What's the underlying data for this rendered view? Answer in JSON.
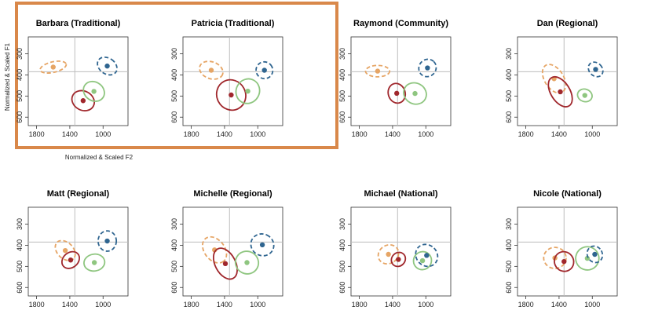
{
  "chart_data": {
    "type": "scatter",
    "xlabel": "Normalized & Scaled F2",
    "ylabel": "Normalized & Scaled F1",
    "x_reversed": true,
    "y_reversed": true,
    "xlim": [
      1900,
      700
    ],
    "ylim": [
      640,
      220
    ],
    "x_ticks": [
      1800,
      1400,
      1000
    ],
    "y_ticks": [
      300,
      400,
      500,
      600
    ],
    "reference_lines": {
      "x": 1340,
      "y": 385
    },
    "highlighted_panels": [
      "Barbara (Traditional)",
      "Patricia (Traditional)"
    ],
    "highlight_color": "#d9884a",
    "series_colors": {
      "orange": "#e6a565",
      "red": "#a0272c",
      "green": "#8fc680",
      "blue": "#2f6590"
    },
    "panels": [
      {
        "title": "Barbara (Traditional)",
        "groups": [
          {
            "color": "orange",
            "dashed": true,
            "x": 1600,
            "y": 363,
            "rx": 160,
            "ry": 25,
            "angle": -13
          },
          {
            "color": "red",
            "dashed": false,
            "x": 1240,
            "y": 522,
            "rx": 115,
            "ry": 55,
            "angle": -62
          },
          {
            "color": "green",
            "dashed": false,
            "x": 1110,
            "y": 478,
            "rx": 112,
            "ry": 52,
            "angle": -55
          },
          {
            "color": "blue",
            "dashed": true,
            "x": 950,
            "y": 358,
            "rx": 95,
            "ry": 50,
            "angle": -55
          }
        ]
      },
      {
        "title": "Patricia (Traditional)",
        "groups": [
          {
            "color": "orange",
            "dashed": true,
            "x": 1560,
            "y": 378,
            "rx": 145,
            "ry": 40,
            "angle": 20
          },
          {
            "color": "red",
            "dashed": false,
            "x": 1320,
            "y": 495,
            "rx": 185,
            "ry": 68,
            "angle": 62
          },
          {
            "color": "green",
            "dashed": false,
            "x": 1120,
            "y": 477,
            "rx": 150,
            "ry": 55,
            "angle": -62
          },
          {
            "color": "blue",
            "dashed": true,
            "x": 920,
            "y": 378,
            "rx": 100,
            "ry": 40,
            "angle": -40
          }
        ]
      },
      {
        "title": "Raymond (Community)",
        "groups": [
          {
            "color": "orange",
            "dashed": true,
            "x": 1580,
            "y": 382,
            "rx": 145,
            "ry": 27,
            "angle": 0
          },
          {
            "color": "red",
            "dashed": false,
            "x": 1350,
            "y": 487,
            "rx": 120,
            "ry": 40,
            "angle": 72
          },
          {
            "color": "green",
            "dashed": false,
            "x": 1130,
            "y": 488,
            "rx": 125,
            "ry": 55,
            "angle": -62
          },
          {
            "color": "blue",
            "dashed": true,
            "x": 980,
            "y": 367,
            "rx": 108,
            "ry": 40,
            "angle": -45
          }
        ]
      },
      {
        "title": "Dan (Regional)",
        "groups": [
          {
            "color": "orange",
            "dashed": true,
            "x": 1460,
            "y": 418,
            "rx": 190,
            "ry": 45,
            "angle": 58
          },
          {
            "color": "red",
            "dashed": false,
            "x": 1385,
            "y": 480,
            "rx": 200,
            "ry": 45,
            "angle": 58
          },
          {
            "color": "green",
            "dashed": false,
            "x": 1090,
            "y": 497,
            "rx": 75,
            "ry": 35,
            "angle": -72
          },
          {
            "color": "blue",
            "dashed": true,
            "x": 960,
            "y": 374,
            "rx": 78,
            "ry": 38,
            "angle": -45
          }
        ]
      },
      {
        "title": "Matt (Regional)",
        "groups": [
          {
            "color": "orange",
            "dashed": true,
            "x": 1455,
            "y": 425,
            "rx": 140,
            "ry": 38,
            "angle": 45
          },
          {
            "color": "red",
            "dashed": false,
            "x": 1390,
            "y": 470,
            "rx": 90,
            "ry": 45,
            "angle": 50
          },
          {
            "color": "green",
            "dashed": false,
            "x": 1105,
            "y": 482,
            "rx": 125,
            "ry": 40,
            "angle": -8
          },
          {
            "color": "blue",
            "dashed": true,
            "x": 950,
            "y": 380,
            "rx": 110,
            "ry": 48,
            "angle": 0
          }
        ]
      },
      {
        "title": "Michelle (Regional)",
        "groups": [
          {
            "color": "orange",
            "dashed": true,
            "x": 1520,
            "y": 422,
            "rx": 175,
            "ry": 48,
            "angle": 52
          },
          {
            "color": "red",
            "dashed": false,
            "x": 1390,
            "y": 487,
            "rx": 200,
            "ry": 48,
            "angle": 62
          },
          {
            "color": "green",
            "dashed": false,
            "x": 1130,
            "y": 482,
            "rx": 135,
            "ry": 55,
            "angle": -62
          },
          {
            "color": "blue",
            "dashed": true,
            "x": 945,
            "y": 398,
            "rx": 130,
            "ry": 55,
            "angle": -65
          }
        ]
      },
      {
        "title": "Michael (National)",
        "groups": [
          {
            "color": "orange",
            "dashed": true,
            "x": 1450,
            "y": 443,
            "rx": 110,
            "ry": 50,
            "angle": 60
          },
          {
            "color": "red",
            "dashed": false,
            "x": 1330,
            "y": 467,
            "rx": 80,
            "ry": 35,
            "angle": 45
          },
          {
            "color": "green",
            "dashed": false,
            "x": 1040,
            "y": 473,
            "rx": 110,
            "ry": 42,
            "angle": -48
          },
          {
            "color": "blue",
            "dashed": true,
            "x": 990,
            "y": 448,
            "rx": 125,
            "ry": 55,
            "angle": -45
          }
        ]
      },
      {
        "title": "Nicole (National)",
        "groups": [
          {
            "color": "orange",
            "dashed": true,
            "x": 1450,
            "y": 460,
            "rx": 135,
            "ry": 50,
            "angle": 0
          },
          {
            "color": "red",
            "dashed": false,
            "x": 1340,
            "y": 477,
            "rx": 120,
            "ry": 45,
            "angle": 55
          },
          {
            "color": "green",
            "dashed": false,
            "x": 1060,
            "y": 462,
            "rx": 140,
            "ry": 55,
            "angle": -25
          },
          {
            "color": "blue",
            "dashed": true,
            "x": 970,
            "y": 443,
            "rx": 90,
            "ry": 40,
            "angle": -30
          }
        ]
      }
    ]
  }
}
